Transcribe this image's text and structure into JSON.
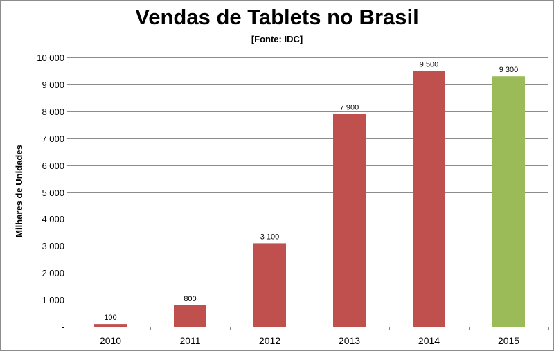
{
  "chart_data": {
    "type": "bar",
    "title": "Vendas de Tablets no Brasil",
    "subtitle": "[Fonte: IDC]",
    "xlabel": "",
    "ylabel": "Milhares de Unidades",
    "ylim": [
      0,
      10000
    ],
    "yticks": [
      0,
      1000,
      2000,
      3000,
      4000,
      5000,
      6000,
      7000,
      8000,
      9000,
      10000
    ],
    "ytick_labels": [
      "-",
      "1 000",
      "2 000",
      "3 000",
      "4 000",
      "5 000",
      "6 000",
      "7 000",
      "8 000",
      "9 000",
      "10 000"
    ],
    "categories": [
      "2010",
      "2011",
      "2012",
      "2013",
      "2014",
      "2015"
    ],
    "values": [
      100,
      800,
      3100,
      7900,
      9500,
      9300
    ],
    "data_labels": [
      "100",
      "800",
      "3 100",
      "7 900",
      "9 500",
      "9 300"
    ],
    "bar_colors": [
      "#c0504d",
      "#c0504d",
      "#c0504d",
      "#c0504d",
      "#c0504d",
      "#9bbb59"
    ],
    "grid": true,
    "legend": "none"
  }
}
